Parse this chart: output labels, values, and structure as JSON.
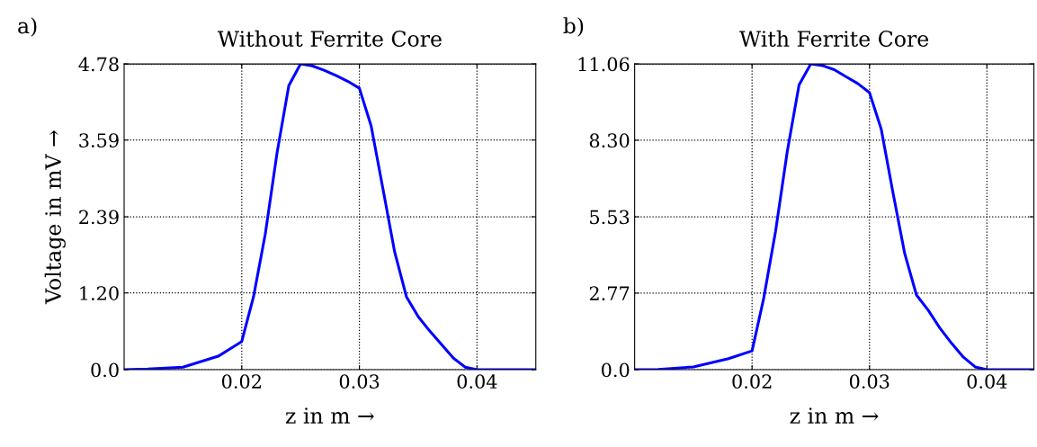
{
  "chart_data": [
    {
      "type": "line",
      "title": "Without Ferrite Core",
      "xlabel": "z in m →",
      "ylabel": "Voltage in mV →",
      "annotations": [
        "a)"
      ],
      "x": [
        0.01,
        0.012,
        0.015,
        0.018,
        0.02,
        0.021,
        0.022,
        0.023,
        0.024,
        0.025,
        0.026,
        0.027,
        0.028,
        0.029,
        0.03,
        0.031,
        0.032,
        0.033,
        0.034,
        0.035,
        0.036,
        0.037,
        0.038,
        0.039,
        0.04,
        0.045
      ],
      "series": [
        {
          "color": "#0000ff",
          "values": [
            0,
            0.01,
            0.04,
            0.21,
            0.44,
            1.14,
            2.12,
            3.39,
            4.44,
            4.78,
            4.75,
            4.68,
            4.6,
            4.51,
            4.4,
            3.81,
            2.83,
            1.84,
            1.14,
            0.83,
            0.6,
            0.39,
            0.18,
            0.04,
            0,
            0
          ]
        }
      ],
      "xlim": [
        0.01,
        0.045
      ],
      "xticks": [
        0.02,
        0.03,
        0.04
      ],
      "ylim": [
        0,
        4.78
      ],
      "yticks": [
        {
          "value": 0,
          "label": "0.0"
        },
        {
          "value": 1.2,
          "label": "1.20"
        },
        {
          "value": 2.39,
          "label": "2.39"
        },
        {
          "value": 3.59,
          "label": "3.59"
        },
        {
          "value": 4.78,
          "label": "4.78"
        }
      ],
      "grid": true,
      "legend": false,
      "marker": "none",
      "line_style": "solid"
    },
    {
      "type": "line",
      "title": "With Ferrite Core",
      "xlabel": "z in m →",
      "annotations": [
        "b)"
      ],
      "series": [
        {
          "color": "#0000ff",
          "x": [
            0.01,
            0.012,
            0.015,
            0.018,
            0.02,
            0.021,
            0.022,
            0.023,
            0.024,
            0.025,
            0.026,
            0.027,
            0.028,
            0.029,
            0.03,
            0.031,
            0.032,
            0.033,
            0.034,
            0.035,
            0.036,
            0.037,
            0.038,
            0.039,
            0.04,
            0.044
          ],
          "values": [
            0,
            0.01,
            0.1,
            0.4,
            0.68,
            2.6,
            5.0,
            7.9,
            10.3,
            11.06,
            11.0,
            10.85,
            10.6,
            10.35,
            10.02,
            8.7,
            6.4,
            4.2,
            2.7,
            2.15,
            1.5,
            0.95,
            0.45,
            0.1,
            0,
            0
          ]
        }
      ],
      "xlim": [
        0.01,
        0.044
      ],
      "xticks": [
        0.02,
        0.03,
        0.04
      ],
      "ylim": [
        0,
        11.06
      ],
      "yticks": [
        {
          "value": 0,
          "label": "0.0"
        },
        {
          "value": 2.77,
          "label": "2.77"
        },
        {
          "value": 5.53,
          "label": "5.53"
        },
        {
          "value": 8.3,
          "label": "8.30"
        },
        {
          "value": 11.06,
          "label": "11.06"
        }
      ],
      "grid": true,
      "legend": false,
      "marker": "none",
      "line_style": "solid"
    }
  ]
}
